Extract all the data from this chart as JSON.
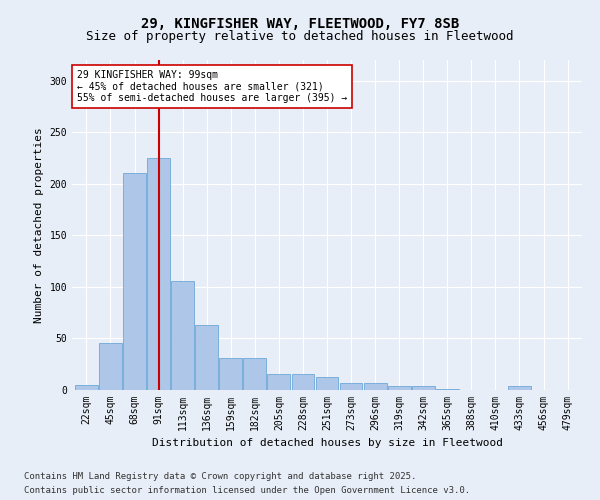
{
  "title_line1": "29, KINGFISHER WAY, FLEETWOOD, FY7 8SB",
  "title_line2": "Size of property relative to detached houses in Fleetwood",
  "xlabel": "Distribution of detached houses by size in Fleetwood",
  "ylabel": "Number of detached properties",
  "categories": [
    "22sqm",
    "45sqm",
    "68sqm",
    "91sqm",
    "113sqm",
    "136sqm",
    "159sqm",
    "182sqm",
    "205sqm",
    "228sqm",
    "251sqm",
    "273sqm",
    "296sqm",
    "319sqm",
    "342sqm",
    "365sqm",
    "388sqm",
    "410sqm",
    "433sqm",
    "456sqm",
    "479sqm"
  ],
  "values": [
    5,
    46,
    210,
    225,
    106,
    63,
    31,
    31,
    16,
    16,
    13,
    7,
    7,
    4,
    4,
    1,
    0,
    0,
    4,
    0,
    0
  ],
  "bar_color": "#aec6e8",
  "bar_edge_color": "#5a9fd4",
  "vline_x": 3.0,
  "vline_color": "#cc0000",
  "annotation_text": "29 KINGFISHER WAY: 99sqm\n← 45% of detached houses are smaller (321)\n55% of semi-detached houses are larger (395) →",
  "annotation_box_color": "#ffffff",
  "annotation_box_edge": "#cc0000",
  "ylim": [
    0,
    320
  ],
  "yticks": [
    0,
    50,
    100,
    150,
    200,
    250,
    300
  ],
  "background_color": "#e8eef7",
  "footer_line1": "Contains HM Land Registry data © Crown copyright and database right 2025.",
  "footer_line2": "Contains public sector information licensed under the Open Government Licence v3.0.",
  "title_fontsize": 10,
  "subtitle_fontsize": 9,
  "axis_label_fontsize": 8,
  "tick_fontsize": 7,
  "annotation_fontsize": 7,
  "footer_fontsize": 6.5,
  "ylabel_fontsize": 8
}
